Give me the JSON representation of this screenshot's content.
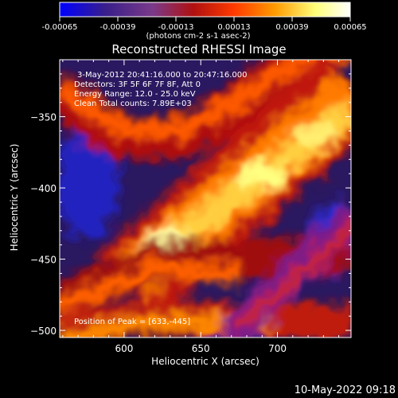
{
  "chart_data": {
    "type": "heatmap",
    "title": "Reconstructed RHESSI Image",
    "xlabel": "Heliocentric X (arcsec)",
    "ylabel": "Heliocentric Y (arcsec)",
    "xlim": [
      558,
      748
    ],
    "ylim": [
      -505,
      -310
    ],
    "x_ticks": [
      600,
      650,
      700
    ],
    "y_ticks": [
      -350,
      -400,
      -450,
      -500
    ],
    "colorbar": {
      "range": [
        -0.00065,
        0.00065
      ],
      "ticks": [
        "-0.00065",
        "-0.00039",
        "-0.00013",
        "0.00013",
        "0.00039",
        "0.00065"
      ],
      "unit_label": "(photons cm-2 s-1 asec-2)",
      "colormap": [
        "#0000ff",
        "#3a1f8a",
        "#7a3a8a",
        "#b01010",
        "#ff3a00",
        "#ff9a00",
        "#ffff7a",
        "#ffffff"
      ]
    },
    "annotations": [
      "3-May-2012 20:41:16.000 to 20:47:16.000",
      "Detectors: 3F 5F 6F 7F 8F, Att 0",
      "Energy Range: 12.0 - 25.0 keV",
      "Clean     Total counts: 7.89E+03"
    ],
    "peak_label": "Position of Peak = [633,-445]",
    "peak": [
      633,
      -445
    ],
    "timestamp": "10-May-2022 09:18",
    "emission_bands": [
      {
        "x": [
          560,
          748
        ],
        "y": [
          -368,
          -340
        ],
        "intensity": 0.6
      },
      {
        "x": [
          600,
          748
        ],
        "y": [
          -445,
          -340
        ],
        "intensity": 0.85
      },
      {
        "x": [
          558,
          748
        ],
        "y": [
          -505,
          -420
        ],
        "intensity": 0.55
      }
    ]
  }
}
